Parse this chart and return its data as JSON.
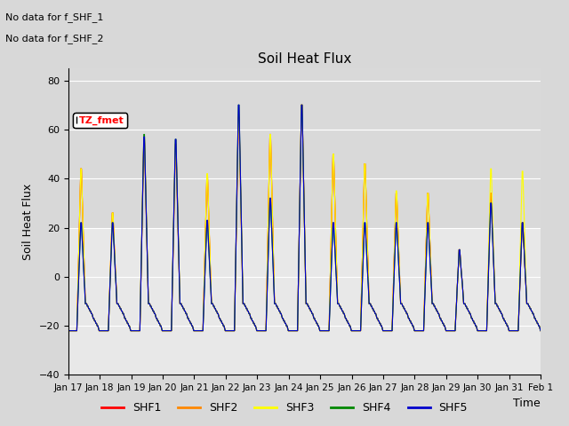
{
  "title": "Soil Heat Flux",
  "ylabel": "Soil Heat Flux",
  "xlabel": "Time",
  "annotation_lines": [
    "No data for f_SHF_1",
    "No data for f_SHF_2"
  ],
  "legend_label": "TZ_fmet",
  "series_labels": [
    "SHF1",
    "SHF2",
    "SHF3",
    "SHF4",
    "SHF5"
  ],
  "series_colors": [
    "#ff0000",
    "#ff8800",
    "#ffff00",
    "#008800",
    "#0000cc"
  ],
  "ylim": [
    -40,
    85
  ],
  "yticks": [
    -40,
    -20,
    0,
    20,
    40,
    60,
    80
  ],
  "background_color": "#d8d8d8",
  "plot_bg_color": "#e8e8e8",
  "upper_band_color": "#d0d0d0",
  "figsize": [
    6.4,
    4.8
  ],
  "dpi": 100,
  "x_tick_labels": [
    "Jan 17",
    "Jan 18",
    "Jan 19",
    "Jan 20",
    "Jan 21",
    "Jan 22",
    "Jan 23",
    "Jan 24",
    "Jan 25",
    "Jan 26",
    "Jan 27",
    "Jan 28",
    "Jan 29",
    "Jan 30",
    "Jan 31",
    "Feb 1"
  ]
}
